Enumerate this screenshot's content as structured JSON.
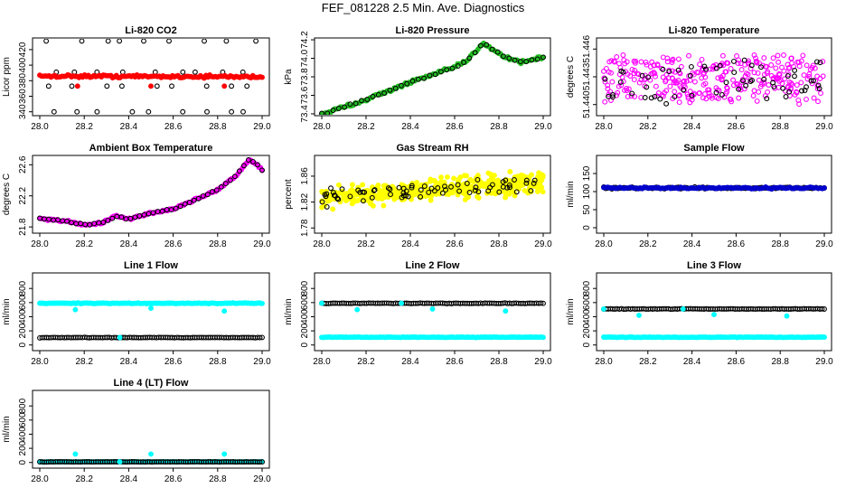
{
  "page": {
    "title": "FEF_081228  2.5 Min. Ave. Diagnostics"
  },
  "colors": {
    "black": "#000000",
    "red": "#ff0000",
    "green": "#22bb22",
    "magenta": "#ff00ff",
    "yellow": "#ffff00",
    "cyan": "#00ffff",
    "blue": "#0000cc"
  },
  "chart_data": [
    {
      "id": "co2",
      "type": "scatter",
      "title": "Li-820 CO2",
      "ylabel": "Licor ppm",
      "xlim": [
        28.0,
        29.0
      ],
      "ylim": [
        335,
        435
      ],
      "xticks": [
        "28.0",
        "28.2",
        "28.4",
        "28.6",
        "28.8",
        "29.0"
      ],
      "yticks": [
        {
          "v": 340,
          "label": "340"
        },
        {
          "v": 360,
          "label": "360"
        },
        {
          "v": 380,
          "label": "380"
        },
        {
          "v": 400,
          "label": "400"
        },
        {
          "v": 420,
          "label": "420"
        }
      ],
      "series": [
        {
          "name": "black-levels",
          "color": "black",
          "hollow": true,
          "mode": "levels",
          "levels": [
            431,
            391,
            373,
            340
          ],
          "count": 9
        },
        {
          "name": "red",
          "color": "red",
          "mode": "line",
          "from": 386,
          "to": 385,
          "noise": 1.5,
          "count": 120
        },
        {
          "name": "red-outliers",
          "color": "red",
          "mode": "points",
          "points": [
            [
              28.17,
              373
            ],
            [
              28.5,
              373
            ],
            [
              28.83,
              373
            ]
          ]
        }
      ]
    },
    {
      "id": "pressure",
      "type": "scatter",
      "title": "Li-820 Pressure",
      "ylabel": "kPa",
      "xlim": [
        28.0,
        29.0
      ],
      "ylim": [
        73.38,
        74.22
      ],
      "xticks": [
        "28.0",
        "28.2",
        "28.4",
        "28.6",
        "28.8",
        "29.0"
      ],
      "yticks": [
        {
          "v": 73.4,
          "label": "73.4"
        },
        {
          "v": 73.6,
          "label": "73.6"
        },
        {
          "v": 73.8,
          "label": "73.8"
        },
        {
          "v": 74.0,
          "label": "74.0"
        },
        {
          "v": 74.2,
          "label": "74.2"
        }
      ],
      "series": [
        {
          "name": "green",
          "color": "green",
          "mode": "path",
          "noise": 0.015,
          "count": 120,
          "path": [
            [
              28.0,
              73.4
            ],
            [
              28.1,
              73.47
            ],
            [
              28.25,
              73.6
            ],
            [
              28.4,
              73.74
            ],
            [
              28.55,
              73.86
            ],
            [
              28.65,
              73.96
            ],
            [
              28.73,
              74.17
            ],
            [
              28.82,
              74.02
            ],
            [
              28.9,
              73.96
            ],
            [
              29.0,
              74.01
            ]
          ]
        },
        {
          "name": "black",
          "color": "black",
          "hollow": true,
          "mode": "path",
          "noise": 0.01,
          "count": 40,
          "path": [
            [
              28.0,
              73.4
            ],
            [
              28.1,
              73.47
            ],
            [
              28.25,
              73.6
            ],
            [
              28.4,
              73.74
            ],
            [
              28.55,
              73.86
            ],
            [
              28.65,
              73.96
            ],
            [
              28.73,
              74.17
            ],
            [
              28.82,
              74.02
            ],
            [
              28.9,
              73.96
            ],
            [
              29.0,
              74.01
            ]
          ]
        }
      ]
    },
    {
      "id": "temp",
      "type": "scatter",
      "title": "Li-820 Temperature",
      "ylabel": "degrees C",
      "xlim": [
        28.0,
        29.0
      ],
      "ylim": [
        51.4388,
        51.4472
      ],
      "xticks": [
        "28.0",
        "28.2",
        "28.4",
        "28.6",
        "28.8",
        "29.0"
      ],
      "yticks": [
        {
          "v": 51.44,
          "label": "51.440"
        },
        {
          "v": 51.443,
          "label": "51.443"
        },
        {
          "v": 51.446,
          "label": "51.446"
        }
      ],
      "series": [
        {
          "name": "magenta",
          "color": "magenta",
          "hollow": true,
          "mode": "band",
          "center": 51.4427,
          "spread": 0.0028,
          "count": 320
        },
        {
          "name": "black",
          "color": "black",
          "hollow": true,
          "mode": "band",
          "center": 51.4427,
          "spread": 0.0028,
          "count": 60
        }
      ]
    },
    {
      "id": "boxtemp",
      "type": "scatter",
      "title": "Ambient Box Temperature",
      "ylabel": "degrees C",
      "xlim": [
        28.0,
        29.0
      ],
      "ylim": [
        21.72,
        22.72
      ],
      "xticks": [
        "28.0",
        "28.2",
        "28.4",
        "28.6",
        "28.8",
        "29.0"
      ],
      "yticks": [
        {
          "v": 21.8,
          "label": "21.8"
        },
        {
          "v": 22.2,
          "label": "22.2"
        },
        {
          "v": 22.6,
          "label": "22.6"
        }
      ],
      "series": [
        {
          "name": "magenta",
          "color": "magenta",
          "mode": "path",
          "noise": 0.012,
          "count": 140,
          "path": [
            [
              28.0,
              21.91
            ],
            [
              28.1,
              21.88
            ],
            [
              28.2,
              21.83
            ],
            [
              28.28,
              21.85
            ],
            [
              28.34,
              21.94
            ],
            [
              28.4,
              21.9
            ],
            [
              28.5,
              21.98
            ],
            [
              28.6,
              22.03
            ],
            [
              28.7,
              22.15
            ],
            [
              28.8,
              22.28
            ],
            [
              28.88,
              22.45
            ],
            [
              28.94,
              22.66
            ],
            [
              28.97,
              22.62
            ],
            [
              29.0,
              22.53
            ]
          ]
        },
        {
          "name": "black",
          "color": "black",
          "hollow": true,
          "mode": "path",
          "noise": 0.008,
          "count": 50,
          "path": [
            [
              28.0,
              21.91
            ],
            [
              28.1,
              21.88
            ],
            [
              28.2,
              21.83
            ],
            [
              28.28,
              21.85
            ],
            [
              28.34,
              21.94
            ],
            [
              28.4,
              21.9
            ],
            [
              28.5,
              21.98
            ],
            [
              28.6,
              22.03
            ],
            [
              28.7,
              22.15
            ],
            [
              28.8,
              22.28
            ],
            [
              28.88,
              22.45
            ],
            [
              28.94,
              22.66
            ],
            [
              28.97,
              22.62
            ],
            [
              29.0,
              22.53
            ]
          ]
        }
      ]
    },
    {
      "id": "rh",
      "type": "scatter",
      "title": "Gas Stream RH",
      "ylabel": "percent",
      "xlim": [
        28.0,
        29.0
      ],
      "ylim": [
        1.772,
        1.892
      ],
      "xticks": [
        "28.0",
        "28.2",
        "28.4",
        "28.6",
        "28.8",
        "29.0"
      ],
      "yticks": [
        {
          "v": 1.78,
          "label": "1.78"
        },
        {
          "v": 1.82,
          "label": "1.82"
        },
        {
          "v": 1.86,
          "label": "1.86"
        }
      ],
      "series": [
        {
          "name": "yellow",
          "color": "yellow",
          "mode": "trendband",
          "from": 1.826,
          "to": 1.852,
          "spread": 0.025,
          "count": 420
        },
        {
          "name": "black",
          "color": "black",
          "hollow": true,
          "mode": "trendband",
          "from": 1.826,
          "to": 1.852,
          "spread": 0.02,
          "count": 70
        }
      ]
    },
    {
      "id": "sampleflow",
      "type": "scatter",
      "title": "Sample Flow",
      "ylabel": "ml/min",
      "xlim": [
        28.0,
        29.0
      ],
      "ylim": [
        -15,
        200
      ],
      "xticks": [
        "28.0",
        "28.2",
        "28.4",
        "28.6",
        "28.8",
        "29.0"
      ],
      "yticks": [
        {
          "v": 0,
          "label": "0"
        },
        {
          "v": 50,
          "label": "50"
        },
        {
          "v": 100,
          "label": "100"
        },
        {
          "v": 150,
          "label": "150"
        }
      ],
      "series": [
        {
          "name": "black",
          "color": "black",
          "hollow": true,
          "mode": "line",
          "from": 110,
          "to": 110,
          "noise": 2,
          "count": 110
        },
        {
          "name": "blue",
          "color": "blue",
          "mode": "line",
          "from": 110,
          "to": 110,
          "noise": 2,
          "count": 110
        }
      ]
    },
    {
      "id": "line1",
      "type": "scatter",
      "title": "Line 1 Flow",
      "ylabel": "ml/min",
      "xlim": [
        28.0,
        29.0
      ],
      "ylim": [
        -80,
        1020
      ],
      "xticks": [
        "28.0",
        "28.2",
        "28.4",
        "28.6",
        "28.8",
        "29.0"
      ],
      "yticks": [
        {
          "v": 0,
          "label": "0"
        },
        {
          "v": 200,
          "label": "200"
        },
        {
          "v": 400,
          "label": "400"
        },
        {
          "v": 600,
          "label": "600"
        },
        {
          "v": 800,
          "label": "800"
        }
      ],
      "series": [
        {
          "name": "cyan-top",
          "color": "cyan",
          "mode": "line",
          "from": 590,
          "to": 590,
          "noise": 4,
          "count": 130
        },
        {
          "name": "black-bottom",
          "color": "black",
          "hollow": true,
          "mode": "line",
          "from": 105,
          "to": 105,
          "noise": 3,
          "count": 100
        },
        {
          "name": "cyan-outliers",
          "color": "cyan",
          "mode": "points",
          "points": [
            [
              28.16,
              500
            ],
            [
              28.5,
              520
            ],
            [
              28.83,
              480
            ],
            [
              28.36,
              105
            ]
          ]
        }
      ]
    },
    {
      "id": "line2",
      "type": "scatter",
      "title": "Line 2 Flow",
      "ylabel": "ml/min",
      "xlim": [
        28.0,
        29.0
      ],
      "ylim": [
        -80,
        1020
      ],
      "xticks": [
        "28.0",
        "28.2",
        "28.4",
        "28.6",
        "28.8",
        "29.0"
      ],
      "yticks": [
        {
          "v": 0,
          "label": "0"
        },
        {
          "v": 200,
          "label": "200"
        },
        {
          "v": 400,
          "label": "400"
        },
        {
          "v": 600,
          "label": "600"
        },
        {
          "v": 800,
          "label": "800"
        }
      ],
      "series": [
        {
          "name": "black-top",
          "color": "black",
          "hollow": true,
          "mode": "line",
          "from": 590,
          "to": 590,
          "noise": 3,
          "count": 100
        },
        {
          "name": "cyan-bottom",
          "color": "cyan",
          "mode": "line",
          "from": 110,
          "to": 110,
          "noise": 3,
          "count": 130
        },
        {
          "name": "cyan-outliers",
          "color": "cyan",
          "mode": "points",
          "points": [
            [
              28.16,
              500
            ],
            [
              28.5,
              510
            ],
            [
              28.83,
              480
            ],
            [
              28.0,
              590
            ],
            [
              28.36,
              590
            ]
          ]
        }
      ]
    },
    {
      "id": "line3",
      "type": "scatter",
      "title": "Line 3 Flow",
      "ylabel": "ml/min",
      "xlim": [
        28.0,
        29.0
      ],
      "ylim": [
        -80,
        1020
      ],
      "xticks": [
        "28.0",
        "28.2",
        "28.4",
        "28.6",
        "28.8",
        "29.0"
      ],
      "yticks": [
        {
          "v": 0,
          "label": "0"
        },
        {
          "v": 200,
          "label": "200"
        },
        {
          "v": 400,
          "label": "400"
        },
        {
          "v": 600,
          "label": "600"
        },
        {
          "v": 800,
          "label": "800"
        }
      ],
      "series": [
        {
          "name": "black-top",
          "color": "black",
          "hollow": true,
          "mode": "line",
          "from": 510,
          "to": 510,
          "noise": 3,
          "count": 100
        },
        {
          "name": "cyan-bottom",
          "color": "cyan",
          "mode": "line",
          "from": 110,
          "to": 110,
          "noise": 3,
          "count": 130
        },
        {
          "name": "cyan-outliers",
          "color": "cyan",
          "mode": "points",
          "points": [
            [
              28.16,
              420
            ],
            [
              28.5,
              430
            ],
            [
              28.83,
              410
            ],
            [
              28.0,
              510
            ],
            [
              28.36,
              510
            ]
          ]
        }
      ]
    },
    {
      "id": "line4",
      "type": "scatter",
      "title": "Line 4 (LT) Flow",
      "ylabel": "ml/min",
      "xlim": [
        28.0,
        29.0
      ],
      "ylim": [
        -80,
        1020
      ],
      "xticks": [
        "28.0",
        "28.2",
        "28.4",
        "28.6",
        "28.8",
        "29.0"
      ],
      "yticks": [
        {
          "v": 0,
          "label": "0"
        },
        {
          "v": 200,
          "label": "200"
        },
        {
          "v": 400,
          "label": "400"
        },
        {
          "v": 600,
          "label": "600"
        },
        {
          "v": 800,
          "label": "800"
        }
      ],
      "series": [
        {
          "name": "cyan-bottom",
          "color": "cyan",
          "mode": "line",
          "from": 8,
          "to": 8,
          "noise": 2,
          "count": 130
        },
        {
          "name": "black-bottom",
          "color": "black",
          "hollow": true,
          "mode": "line",
          "from": 8,
          "to": 8,
          "noise": 2,
          "count": 100
        },
        {
          "name": "cyan-outliers",
          "color": "cyan",
          "mode": "points",
          "points": [
            [
              28.16,
              120
            ],
            [
              28.5,
              120
            ],
            [
              28.83,
              120
            ],
            [
              28.36,
              8
            ]
          ]
        }
      ]
    }
  ]
}
